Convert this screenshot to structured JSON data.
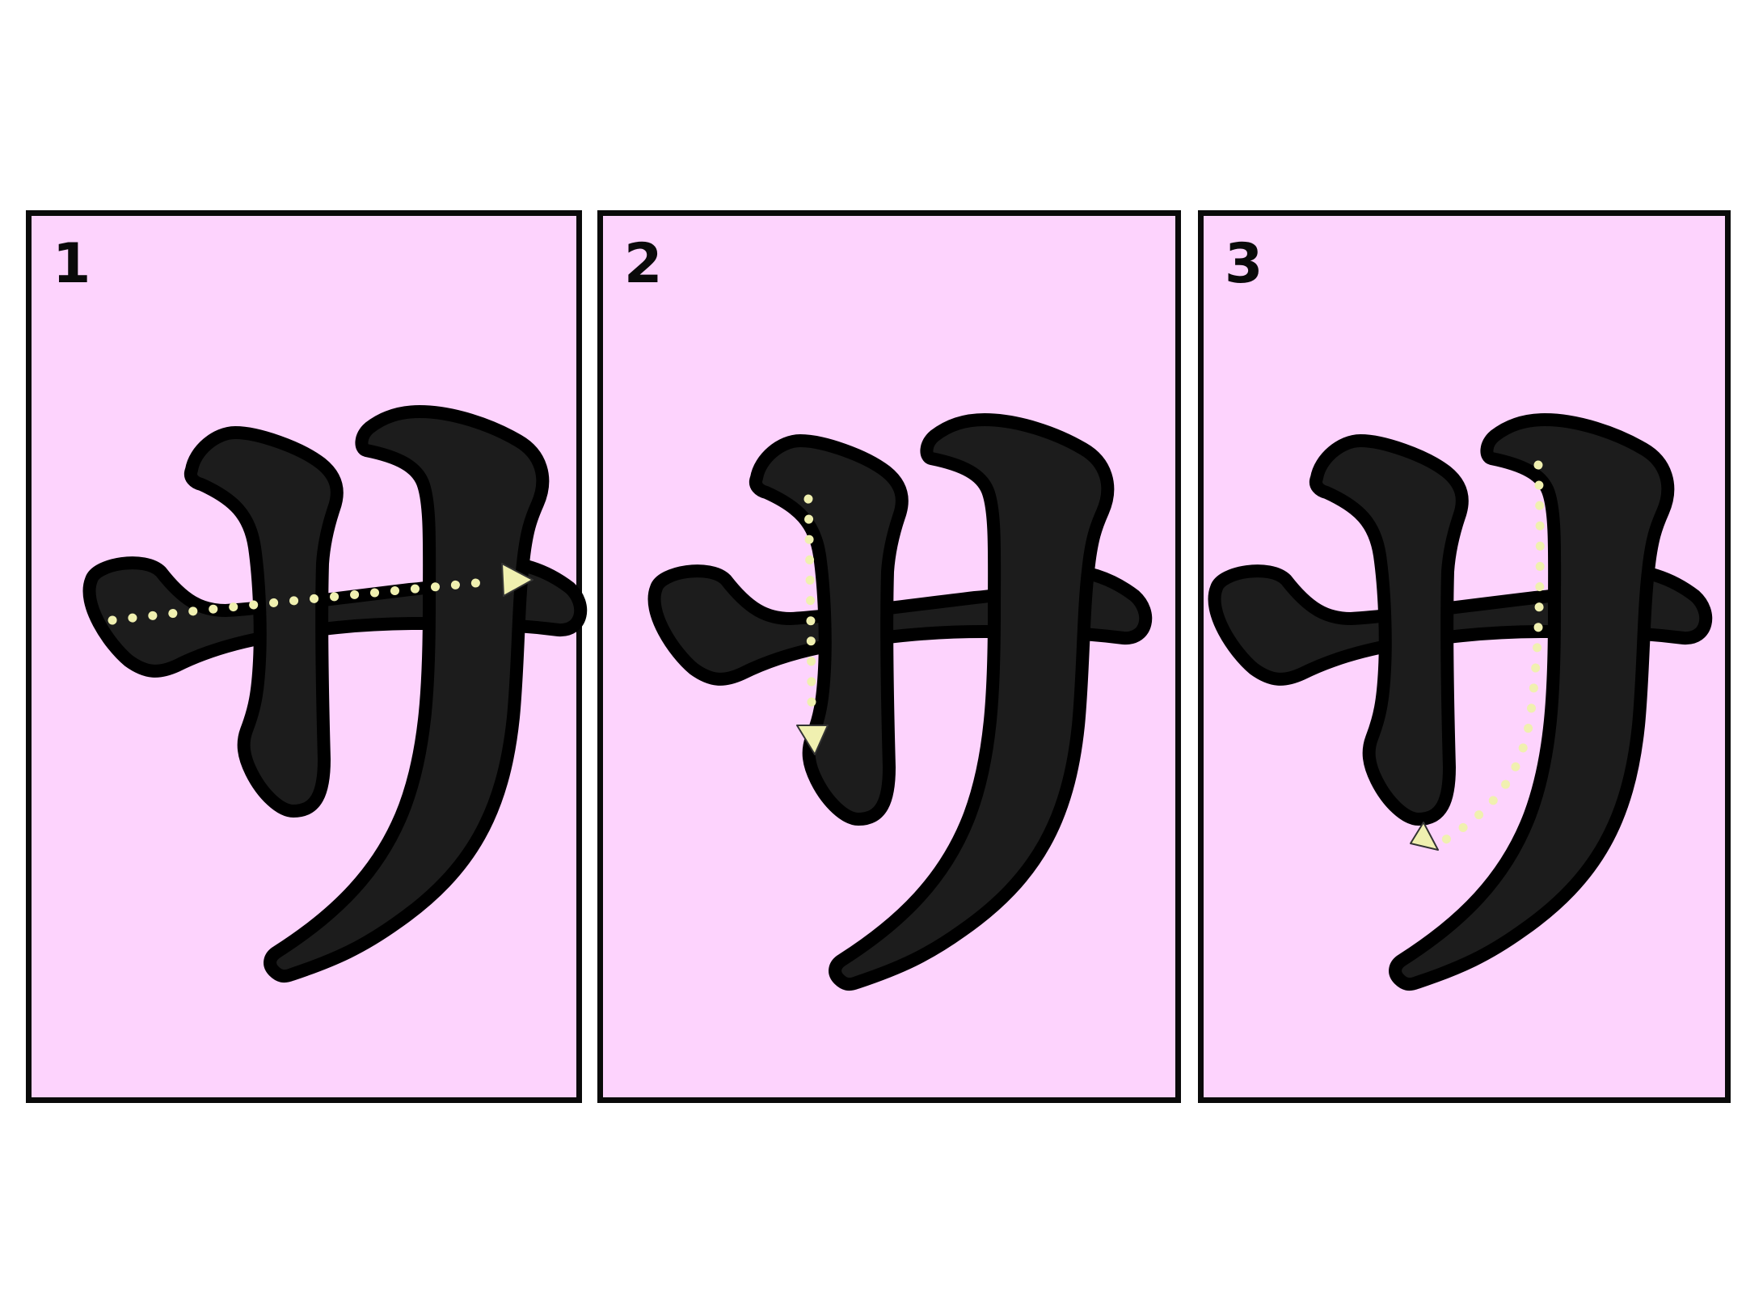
{
  "diagram": {
    "character": "サ",
    "panels": [
      {
        "step": "1"
      },
      {
        "step": "2"
      },
      {
        "step": "3"
      }
    ]
  },
  "colors": {
    "panel_background": "#fdd3fd",
    "panel_border": "#0a0a0a",
    "glyph_fill": "#1c1c1c",
    "glyph_outline": "#000000",
    "guide": "#f0f0b0"
  }
}
